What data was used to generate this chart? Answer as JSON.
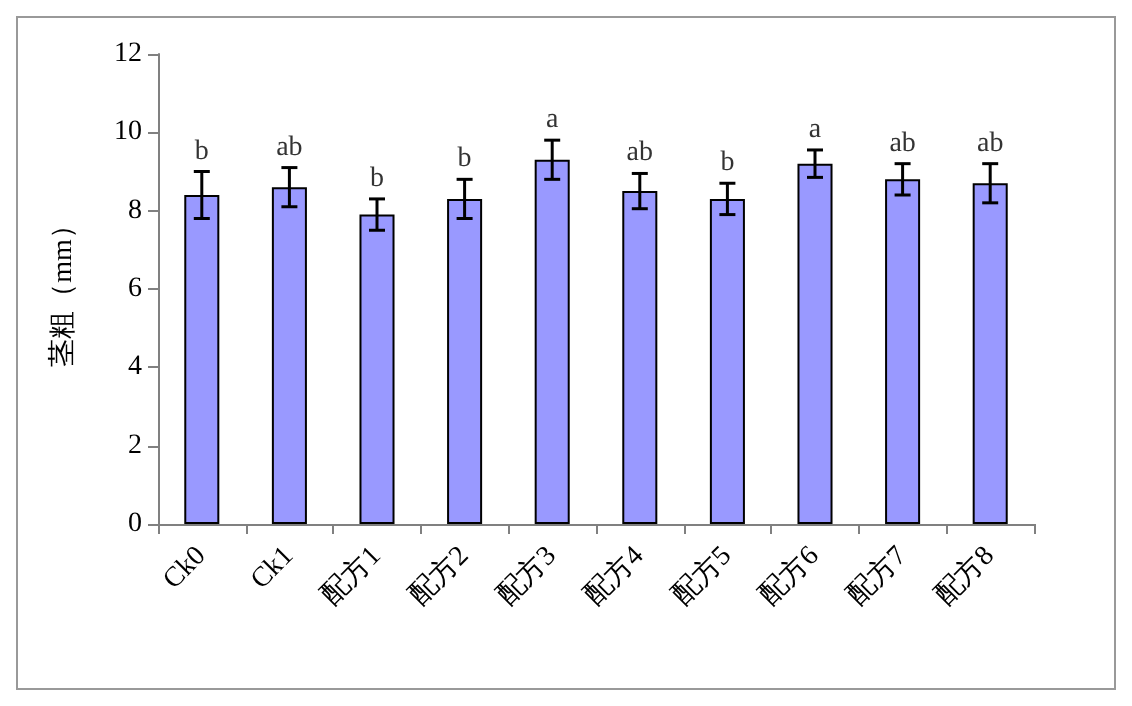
{
  "chart_data": {
    "type": "bar",
    "ylabel": "茎粗（mm）",
    "categories": [
      "Ck0",
      "Ck1",
      "配方1",
      "配方2",
      "配方3",
      "配方4",
      "配方5",
      "配方6",
      "配方7",
      "配方8"
    ],
    "values": [
      8.4,
      8.6,
      7.9,
      8.3,
      9.3,
      8.5,
      8.3,
      9.2,
      8.8,
      8.7
    ],
    "errors": [
      0.6,
      0.5,
      0.4,
      0.5,
      0.5,
      0.45,
      0.4,
      0.35,
      0.4,
      0.5
    ],
    "color": "#9999ff",
    "ylim": [
      0,
      12
    ],
    "yticks": [
      0,
      2,
      4,
      6,
      8,
      10,
      12
    ],
    "grid": false,
    "annotations": [
      {
        "text": "b",
        "x": "Ck0",
        "y": 9.0
      },
      {
        "text": "ab",
        "x": "Ck1",
        "y": 9.1
      },
      {
        "text": "b",
        "x": "配方1",
        "y": 8.3
      },
      {
        "text": "b",
        "x": "配方2",
        "y": 8.8
      },
      {
        "text": "a",
        "x": "配方3",
        "y": 9.8
      },
      {
        "text": "ab",
        "x": "配方4",
        "y": 8.95
      },
      {
        "text": "b",
        "x": "配方5",
        "y": 8.7
      },
      {
        "text": "a",
        "x": "配方6",
        "y": 9.55
      },
      {
        "text": "ab",
        "x": "配方7",
        "y": 9.2
      },
      {
        "text": "ab",
        "x": "配方8",
        "y": 9.2
      }
    ]
  }
}
